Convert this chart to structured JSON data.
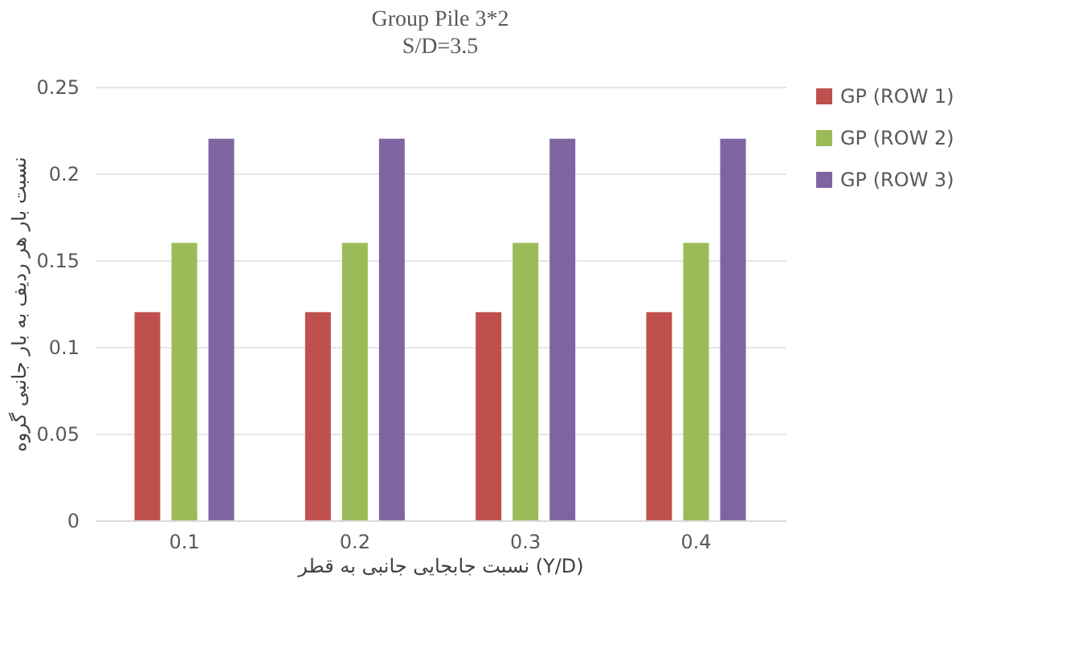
{
  "chart_data": {
    "type": "bar",
    "title": "Group Pile 3*2",
    "subtitle": "S/D=3.5",
    "xlabel": "نسبت جابجایی جانبی به قطر (Y/D)",
    "ylabel": "نسبت بار هر ردیف به بار جانبی گروه",
    "categories": [
      "0.1",
      "0.2",
      "0.3",
      "0.4"
    ],
    "series": [
      {
        "name": "GP (ROW 1)",
        "color": "#c0504d",
        "values": [
          0.12,
          0.12,
          0.12,
          0.12
        ]
      },
      {
        "name": "GP (ROW 2)",
        "color": "#9bbb59",
        "values": [
          0.16,
          0.16,
          0.16,
          0.16
        ]
      },
      {
        "name": "GP (ROW 3)",
        "color": "#8064a2",
        "values": [
          0.22,
          0.22,
          0.22,
          0.22
        ]
      }
    ],
    "ylim": [
      0,
      0.25
    ],
    "yticks": [
      0,
      0.05,
      0.1,
      0.15,
      0.2,
      0.25
    ],
    "grid": "y",
    "legend": "right"
  }
}
